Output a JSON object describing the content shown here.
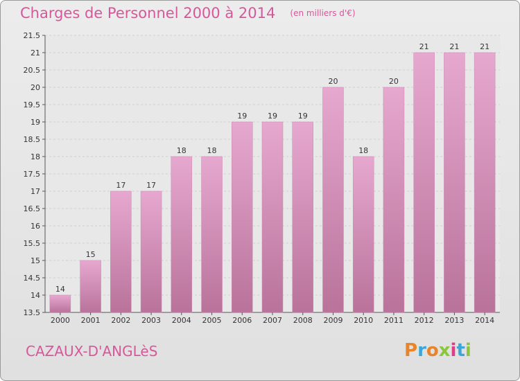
{
  "header": {
    "title": "Charges de Personnel 2000 à 2014",
    "unit": "(en milliers d'€)"
  },
  "footer": {
    "commune": "CAZAUX-D'ANGLèS",
    "logo": "Proxiti",
    "logo_colors": [
      "#e8842a",
      "#3aa7d8",
      "#e8842a",
      "#8cc63f",
      "#e23a8a",
      "#3aa7d8",
      "#8cc63f"
    ]
  },
  "colors": {
    "title": "#d6589a",
    "bar_top": "#e6a8cf",
    "bar_bottom": "#b9739b",
    "grid": "#cfcfcf"
  },
  "chart_data": {
    "type": "bar",
    "title": "Charges de Personnel 2000 à 2014",
    "subtitle": "(en milliers d'€)",
    "categories": [
      "2000",
      "2001",
      "2002",
      "2003",
      "2004",
      "2005",
      "2006",
      "2007",
      "2008",
      "2009",
      "2010",
      "2011",
      "2012",
      "2013",
      "2014"
    ],
    "values": [
      14,
      15,
      17,
      17,
      18,
      18,
      19,
      19,
      19,
      20,
      18,
      20,
      21,
      21,
      21
    ],
    "data_labels": [
      "14",
      "15",
      "17",
      "17",
      "18",
      "18",
      "19",
      "19",
      "19",
      "20",
      "18",
      "20",
      "21",
      "21",
      "21"
    ],
    "ylim": [
      13.5,
      21.5
    ],
    "yticks": [
      13.5,
      14,
      14.5,
      15,
      15.5,
      16,
      16.5,
      17,
      17.5,
      18,
      18.5,
      19,
      19.5,
      20,
      20.5,
      21,
      21.5
    ],
    "ytick_labels": [
      "13.5",
      "14",
      "14.5",
      "15",
      "15.5",
      "16",
      "16.5",
      "17",
      "17.5",
      "18",
      "18.5",
      "19",
      "19.5",
      "20",
      "20.5",
      "21",
      "21.5"
    ],
    "grid": true,
    "legend": "none"
  }
}
